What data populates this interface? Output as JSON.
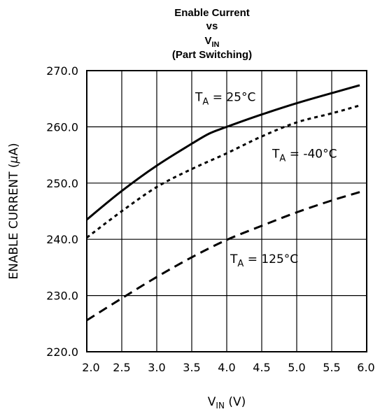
{
  "chart_data": {
    "type": "line",
    "title": {
      "line1": "Enable Current",
      "line2": "vs",
      "line3_main": "V",
      "line3_sub": "IN",
      "line4": "(Part Switching)"
    },
    "xlabel": {
      "main": "V",
      "sub": "IN",
      "rest": " (V)"
    },
    "ylabel": {
      "main": "ENABLE CURRENT (",
      "mu": "μ",
      "rest": "A)"
    },
    "xlim": [
      2.0,
      6.0
    ],
    "ylim": [
      220.0,
      270.0
    ],
    "x_ticks": [
      "2.0",
      "2.5",
      "3.0",
      "3.5",
      "4.0",
      "4.5",
      "5.0",
      "5.5",
      "6.0"
    ],
    "y_ticks": [
      "220.0",
      "230.0",
      "240.0",
      "250.0",
      "260.0",
      "270.0"
    ],
    "grid": true,
    "series": [
      {
        "label_main": "T",
        "label_sub": "A",
        "label_rest": " = 25°C",
        "style": "solid",
        "x": [
          2.0,
          2.5,
          3.0,
          3.5,
          3.75,
          4.0,
          4.5,
          5.0,
          5.5,
          5.9
        ],
        "y": [
          243.5,
          248.6,
          253.1,
          257.0,
          258.8,
          260.0,
          262.2,
          264.2,
          266.0,
          267.4
        ]
      },
      {
        "label_main": "T",
        "label_sub": "A",
        "label_rest": " = -40°C",
        "style": "dotted",
        "x": [
          2.0,
          2.5,
          3.0,
          3.5,
          4.0,
          4.5,
          5.0,
          5.5,
          5.9
        ],
        "y": [
          240.3,
          245.0,
          249.3,
          252.5,
          255.3,
          258.3,
          260.8,
          262.4,
          263.8
        ]
      },
      {
        "label_main": "T",
        "label_sub": "A",
        "label_rest": " = 125°C",
        "style": "dashed",
        "x": [
          2.0,
          2.5,
          3.0,
          3.5,
          4.0,
          4.5,
          5.0,
          5.5,
          5.9
        ],
        "y": [
          225.6,
          229.5,
          233.3,
          236.8,
          239.9,
          242.4,
          244.8,
          246.9,
          248.4
        ]
      }
    ]
  }
}
